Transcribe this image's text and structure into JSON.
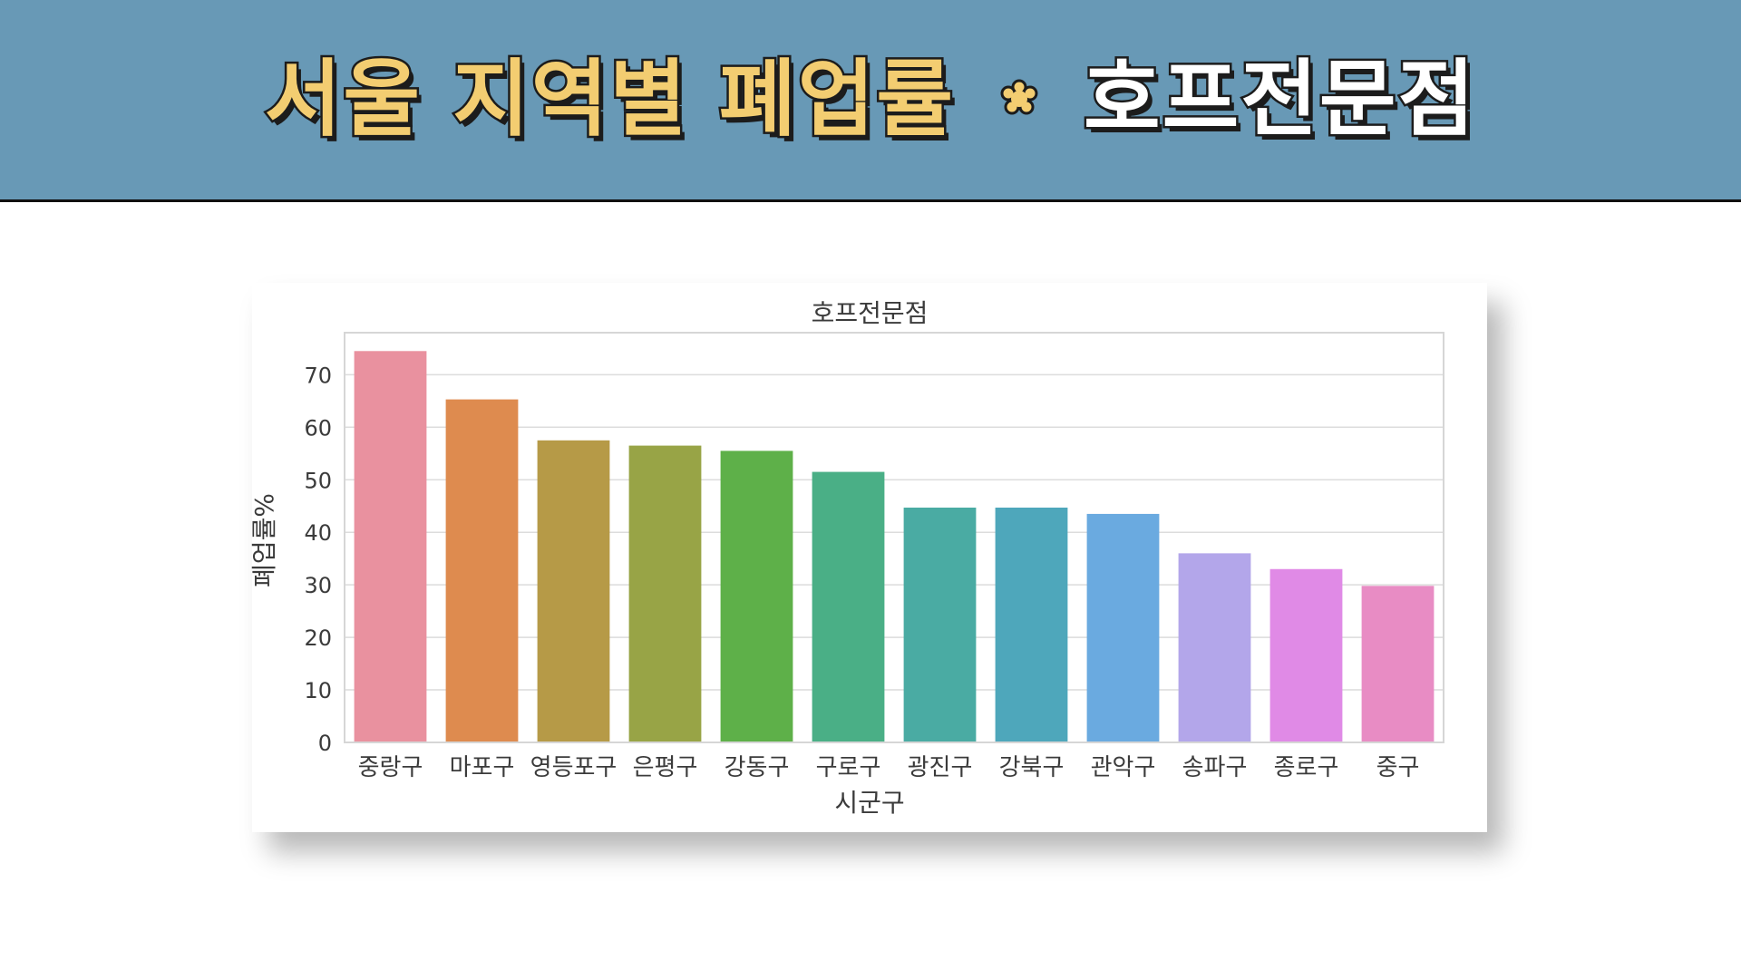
{
  "header": {
    "title_left": "서울 지역별 폐업률",
    "title_right": "호프전문점",
    "icon": "flower-icon",
    "background": "#6899b6",
    "left_color": "#f3cd71",
    "right_color": "#ffffff"
  },
  "chart_data": {
    "type": "bar",
    "title": "호프전문점",
    "xlabel": "시군구",
    "ylabel": "폐업률%",
    "categories": [
      "중랑구",
      "마포구",
      "영등포구",
      "은평구",
      "강동구",
      "구로구",
      "광진구",
      "강북구",
      "관악구",
      "송파구",
      "종로구",
      "중구"
    ],
    "values": [
      74.5,
      65.3,
      57.5,
      56.5,
      55.5,
      51.5,
      44.7,
      44.7,
      43.5,
      36.0,
      33.0,
      29.8
    ],
    "ylim": [
      0,
      78
    ],
    "yticks": [
      0,
      10,
      20,
      30,
      40,
      50,
      60,
      70
    ],
    "grid": true,
    "colors": [
      "#e9919f",
      "#de8b4f",
      "#b69a47",
      "#98a446",
      "#5eb049",
      "#4aaf86",
      "#4aaba3",
      "#4ea7bb",
      "#6aaae0",
      "#b3a6ea",
      "#e08ae6",
      "#e88cc4"
    ]
  }
}
